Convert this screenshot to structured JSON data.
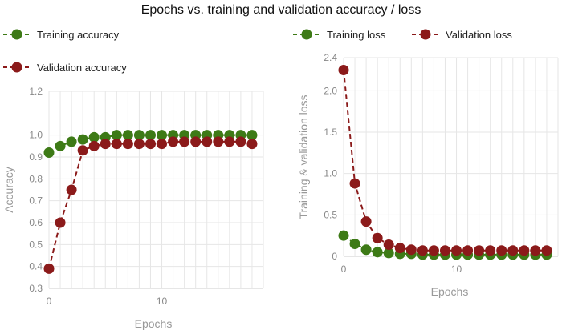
{
  "title": "Epochs vs. training and validation accuracy / loss",
  "colors": {
    "training": "#3d7a16",
    "validation": "#8b1a1a",
    "grid": "#e6e6e6"
  },
  "chart_data": [
    {
      "type": "line",
      "xlabel": "Epochs",
      "ylabel": "Accuracy",
      "xlim": [
        0,
        19
      ],
      "ylim": [
        0.3,
        1.2
      ],
      "x_ticks": [
        "0",
        "10"
      ],
      "x_tick_values": [
        0,
        10
      ],
      "y_ticks": [
        "0.3",
        "0.4",
        "0.5",
        "0.6",
        "0.7",
        "0.8",
        "0.9",
        "1.0",
        "1.2"
      ],
      "y_tick_values": [
        0.3,
        0.4,
        0.5,
        0.6,
        0.7,
        0.8,
        0.9,
        1.0,
        1.2
      ],
      "grid": true,
      "legend_position": "top-left",
      "x": [
        0,
        1,
        2,
        3,
        4,
        5,
        6,
        7,
        8,
        9,
        10,
        11,
        12,
        13,
        14,
        15,
        16,
        17,
        18
      ],
      "series": [
        {
          "name": "Training accuracy",
          "color": "#3d7a16",
          "values": [
            0.92,
            0.95,
            0.97,
            0.98,
            0.99,
            0.99,
            1.0,
            1.0,
            1.0,
            1.0,
            1.0,
            1.0,
            1.0,
            1.0,
            1.0,
            1.0,
            1.0,
            1.0,
            1.0
          ]
        },
        {
          "name": "Validation accuracy",
          "color": "#8b1a1a",
          "values": [
            0.39,
            0.6,
            0.75,
            0.93,
            0.95,
            0.96,
            0.96,
            0.96,
            0.96,
            0.96,
            0.96,
            0.97,
            0.97,
            0.97,
            0.97,
            0.97,
            0.97,
            0.97,
            0.96
          ]
        }
      ]
    },
    {
      "type": "line",
      "xlabel": "Epochs",
      "ylabel": "Training & validation loss",
      "xlim": [
        0,
        19
      ],
      "ylim": [
        0,
        2.4
      ],
      "x_ticks": [
        "0",
        "10"
      ],
      "x_tick_values": [
        0,
        10
      ],
      "y_ticks": [
        "0",
        "0.5",
        "1.0",
        "1.5",
        "2.0",
        "2.4"
      ],
      "y_tick_values": [
        0,
        0.5,
        1.0,
        1.5,
        2.0,
        2.4
      ],
      "grid": true,
      "legend_position": "top",
      "x": [
        0,
        1,
        2,
        3,
        4,
        5,
        6,
        7,
        8,
        9,
        10,
        11,
        12,
        13,
        14,
        15,
        16,
        17,
        18
      ],
      "series": [
        {
          "name": "Training loss",
          "color": "#3d7a16",
          "values": [
            0.25,
            0.15,
            0.08,
            0.05,
            0.04,
            0.03,
            0.03,
            0.02,
            0.02,
            0.02,
            0.02,
            0.02,
            0.02,
            0.02,
            0.02,
            0.02,
            0.02,
            0.02,
            0.02
          ]
        },
        {
          "name": "Validation loss",
          "color": "#8b1a1a",
          "values": [
            2.25,
            0.88,
            0.42,
            0.22,
            0.14,
            0.1,
            0.08,
            0.07,
            0.07,
            0.07,
            0.07,
            0.07,
            0.07,
            0.07,
            0.07,
            0.07,
            0.07,
            0.07,
            0.07
          ]
        }
      ]
    }
  ]
}
